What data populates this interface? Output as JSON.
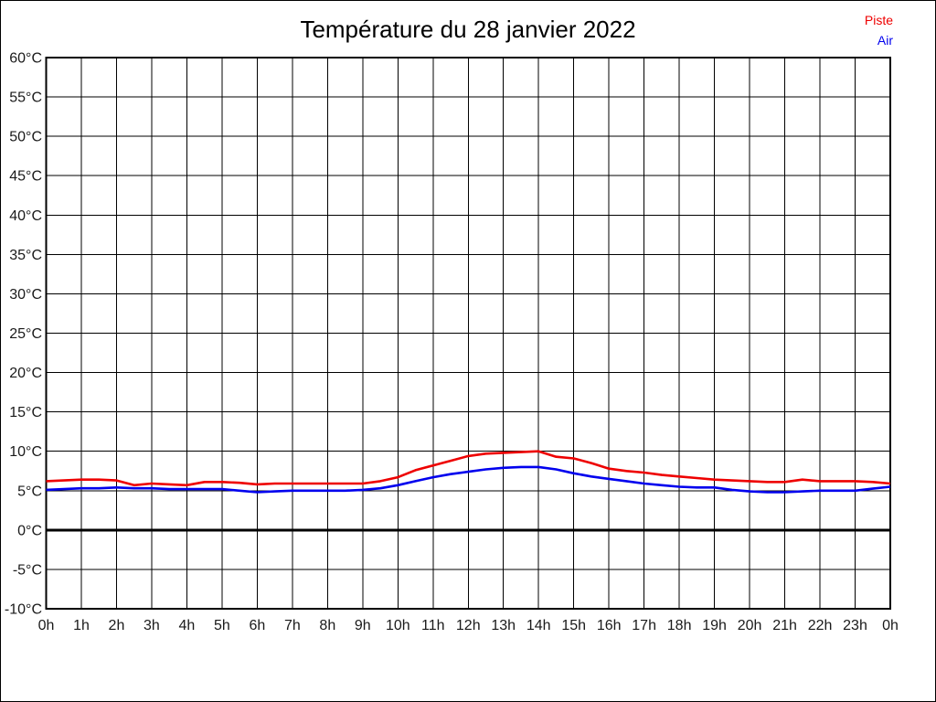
{
  "chart_data": {
    "type": "line",
    "title": "Température du 28 janvier 2022",
    "xlabel": "",
    "ylabel": "",
    "xlim": [
      0,
      24
    ],
    "ylim": [
      -10,
      60
    ],
    "y_tick_step": 5,
    "grid": true,
    "zero_line": true,
    "legend_position": "top-right",
    "x_tick_labels": [
      "0h",
      "1h",
      "2h",
      "3h",
      "4h",
      "5h",
      "6h",
      "7h",
      "8h",
      "9h",
      "10h",
      "11h",
      "12h",
      "13h",
      "14h",
      "15h",
      "16h",
      "17h",
      "18h",
      "19h",
      "20h",
      "21h",
      "22h",
      "23h",
      "0h"
    ],
    "y_tick_labels": [
      "-10°C",
      "-5°C",
      "0°C",
      "5°C",
      "10°C",
      "15°C",
      "20°C",
      "25°C",
      "30°C",
      "35°C",
      "40°C",
      "45°C",
      "50°C",
      "55°C",
      "60°C"
    ],
    "x": [
      0,
      0.5,
      1,
      1.5,
      2,
      2.5,
      3,
      3.5,
      4,
      4.5,
      5,
      5.5,
      6,
      6.5,
      7,
      7.5,
      8,
      8.5,
      9,
      9.5,
      10,
      10.5,
      11,
      11.5,
      12,
      12.5,
      13,
      13.5,
      14,
      14.5,
      15,
      15.5,
      16,
      16.5,
      17,
      17.5,
      18,
      18.5,
      19,
      19.5,
      20,
      20.5,
      21,
      21.5,
      22,
      22.5,
      23,
      23.5,
      24
    ],
    "series": [
      {
        "name": "Piste",
        "color": "#ee0000",
        "values": [
          6.2,
          6.3,
          6.4,
          6.4,
          6.3,
          5.7,
          5.9,
          5.8,
          5.7,
          6.1,
          6.1,
          6.0,
          5.8,
          5.9,
          5.9,
          5.9,
          5.9,
          5.9,
          5.9,
          6.2,
          6.7,
          7.6,
          8.2,
          8.8,
          9.4,
          9.7,
          9.8,
          9.9,
          10.0,
          9.3,
          9.1,
          8.5,
          7.8,
          7.5,
          7.3,
          7.0,
          6.8,
          6.6,
          6.4,
          6.3,
          6.2,
          6.1,
          6.1,
          6.4,
          6.2,
          6.2,
          6.2,
          6.1,
          5.9
        ]
      },
      {
        "name": "Air",
        "color": "#0000ee",
        "values": [
          5.1,
          5.2,
          5.3,
          5.3,
          5.4,
          5.3,
          5.3,
          5.2,
          5.2,
          5.2,
          5.2,
          5.0,
          4.8,
          4.9,
          5.0,
          5.0,
          5.0,
          5.0,
          5.1,
          5.3,
          5.7,
          6.2,
          6.7,
          7.1,
          7.4,
          7.7,
          7.9,
          8.0,
          8.0,
          7.7,
          7.2,
          6.8,
          6.5,
          6.2,
          5.9,
          5.7,
          5.5,
          5.4,
          5.4,
          5.1,
          4.9,
          4.8,
          4.8,
          4.9,
          5.0,
          5.0,
          5.0,
          5.25,
          5.5
        ]
      }
    ],
    "axis_label_color": "#1a1a1a",
    "grid_color": "#000000"
  }
}
